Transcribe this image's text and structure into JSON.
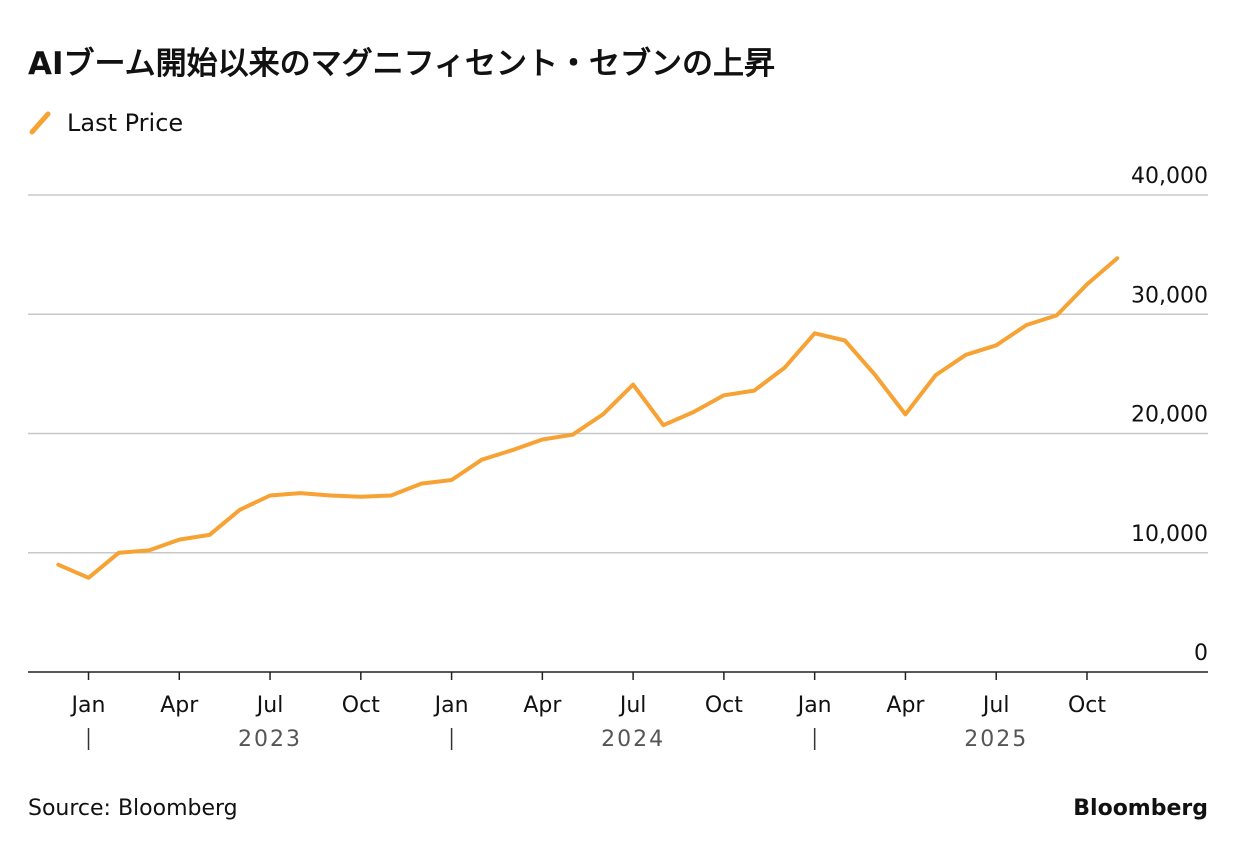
{
  "chart_data": {
    "type": "line",
    "title": "AIブーム開始以来のマグニフィセント・セブンの上昇",
    "series": [
      {
        "name": "Last Price",
        "color": "#f7a234",
        "values": [
          9000,
          7900,
          10000,
          10200,
          11100,
          11500,
          13600,
          14800,
          15000,
          14800,
          14700,
          14800,
          15800,
          16100,
          17800,
          18600,
          19500,
          19900,
          21600,
          24100,
          20700,
          21800,
          23200,
          23600,
          25500,
          28400,
          27800,
          24900,
          21600,
          24900,
          26600,
          27400,
          29100,
          29900,
          32500,
          34700
        ]
      }
    ],
    "x": [
      "2022-12",
      "2023-01",
      "2023-02",
      "2023-03",
      "2023-04",
      "2023-05",
      "2023-06",
      "2023-07",
      "2023-08",
      "2023-09",
      "2023-10",
      "2023-11",
      "2023-12",
      "2024-01",
      "2024-02",
      "2024-03",
      "2024-04",
      "2024-05",
      "2024-06",
      "2024-07",
      "2024-08",
      "2024-09",
      "2024-10",
      "2024-11",
      "2024-12",
      "2025-01",
      "2025-02",
      "2025-03",
      "2025-04",
      "2025-05",
      "2025-06",
      "2025-07",
      "2025-08",
      "2025-09",
      "2025-10",
      "2025-11"
    ],
    "xlim": [
      "2022-11",
      "2026-02"
    ],
    "xticks": [
      {
        "value": "2023-01",
        "label": "Jan"
      },
      {
        "value": "2023-04",
        "label": "Apr"
      },
      {
        "value": "2023-07",
        "label": "Jul"
      },
      {
        "value": "2023-10",
        "label": "Oct"
      },
      {
        "value": "2024-01",
        "label": "Jan"
      },
      {
        "value": "2024-04",
        "label": "Apr"
      },
      {
        "value": "2024-07",
        "label": "Jul"
      },
      {
        "value": "2024-10",
        "label": "Oct"
      },
      {
        "value": "2025-01",
        "label": "Jan"
      },
      {
        "value": "2025-04",
        "label": "Apr"
      },
      {
        "value": "2025-07",
        "label": "Jul"
      },
      {
        "value": "2025-10",
        "label": "Oct"
      }
    ],
    "years": [
      2023,
      2024,
      2025
    ],
    "ylim": [
      0,
      40000
    ],
    "yticks": [
      0,
      {
        "value": 10000,
        "label": "10,000"
      },
      {
        "value": 20000,
        "label": "20,000"
      },
      {
        "value": 30000,
        "label": "30,000"
      },
      {
        "value": 40000,
        "label": "40,000"
      }
    ],
    "grid": true,
    "source": "Source: Bloomberg",
    "brand": "Bloomberg"
  }
}
